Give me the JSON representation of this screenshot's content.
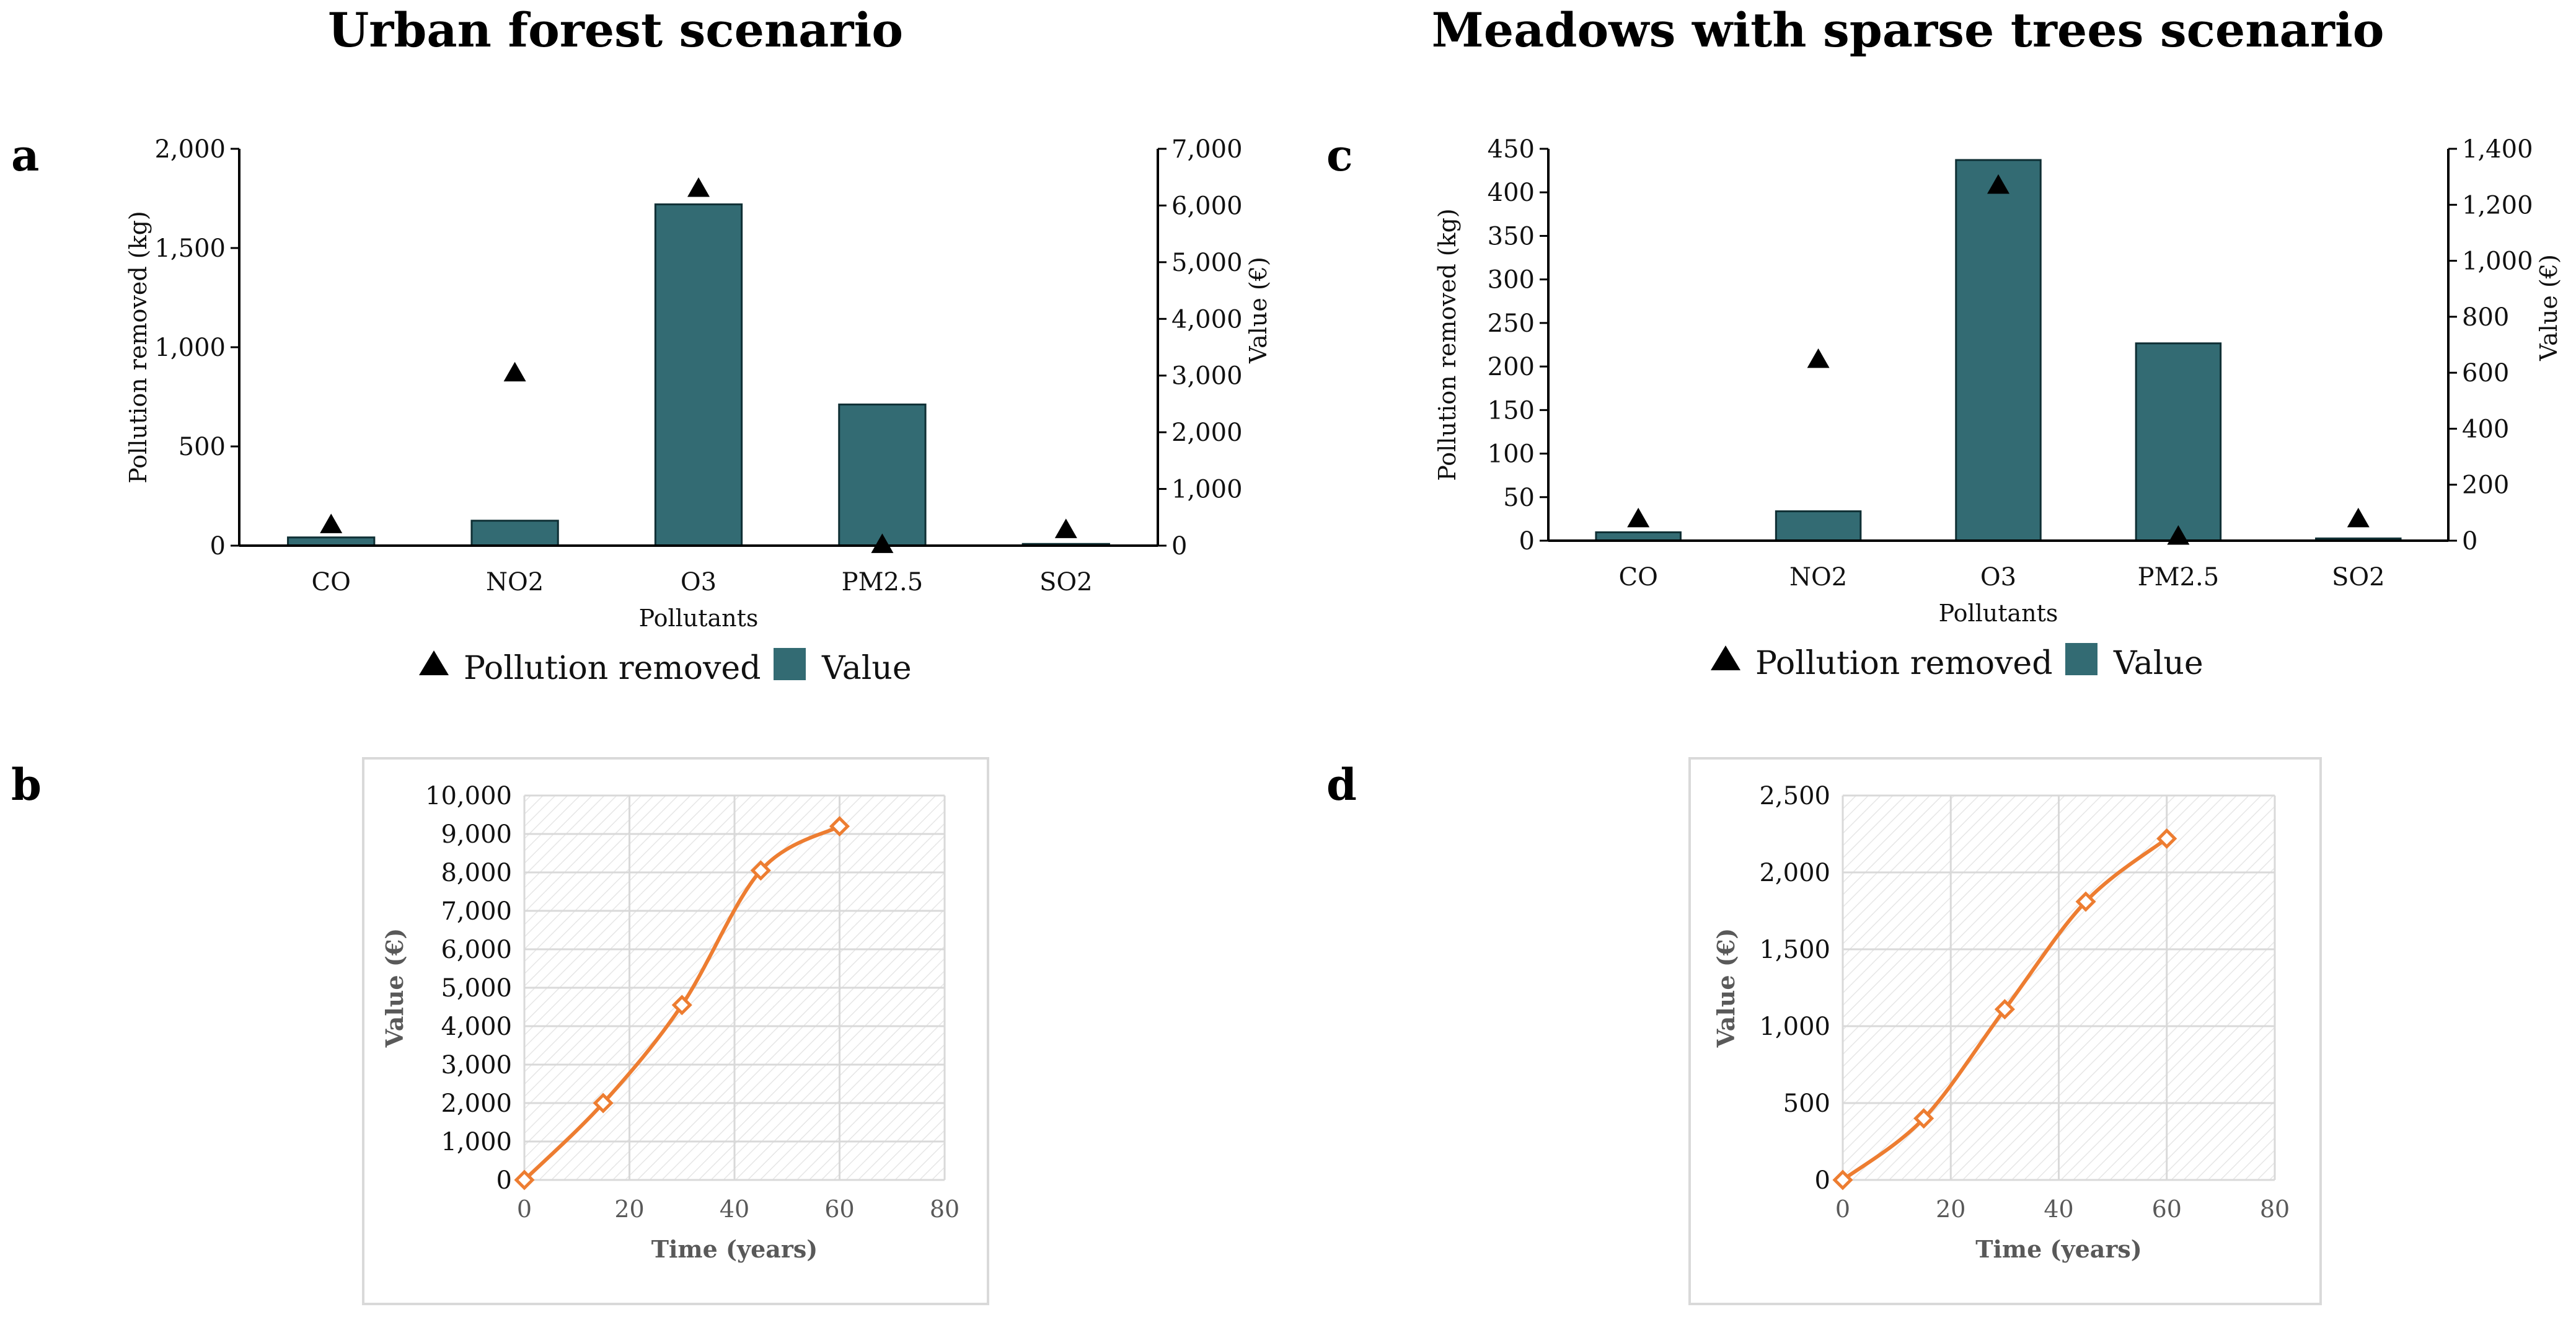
{
  "colors": {
    "bar": "#336b73",
    "bar_stroke": "#0f2f34",
    "marker": "#000000",
    "line": "#ED7D31",
    "grid": "#d9d9d9",
    "frame": "#d9d9d9"
  },
  "titles": {
    "left": "Urban forest scenario",
    "right": "Meadows with sparse trees scenario"
  },
  "chart_data": [
    {
      "id": "a",
      "panel_label": "a",
      "type": "bar",
      "title": "Urban forest scenario",
      "xlabel": "Pollutants",
      "ylabel": "Pollution removed (kg)",
      "y2label": "Value (€)",
      "categories": [
        "CO",
        "NO2",
        "O3",
        "PM2.5",
        "SO2"
      ],
      "ylim": [
        0,
        2000
      ],
      "yticks": [
        "0",
        "500",
        "1,000",
        "1,500",
        "2,000"
      ],
      "y2lim": [
        0,
        7000
      ],
      "y2ticks": [
        "0",
        "1,000",
        "2,000",
        "3,000",
        "4,000",
        "5,000",
        "6,000",
        "7,000"
      ],
      "series": [
        {
          "name": "Pollution removed",
          "kind": "triangle-marker",
          "axis": "left",
          "values": [
            105,
            870,
            1800,
            5,
            80
          ]
        },
        {
          "name": "Value",
          "kind": "bar",
          "axis": "right",
          "values": [
            145,
            440,
            6020,
            2490,
            30
          ]
        }
      ],
      "legend": [
        "Pollution removed",
        "Value"
      ]
    },
    {
      "id": "c",
      "panel_label": "c",
      "type": "bar",
      "title": "Meadows with sparse trees scenario",
      "xlabel": "Pollutants",
      "ylabel": "Pollution removed (kg)",
      "y2label": "Value (€)",
      "categories": [
        "CO",
        "NO2",
        "O3",
        "PM2.5",
        "SO2"
      ],
      "ylim": [
        0,
        450
      ],
      "yticks": [
        "0",
        "50",
        "100",
        "150",
        "200",
        "250",
        "300",
        "350",
        "400",
        "450"
      ],
      "y2lim": [
        0,
        1400
      ],
      "y2ticks": [
        "0",
        "200",
        "400",
        "600",
        "800",
        "1,000",
        "1,200",
        "1,400"
      ],
      "series": [
        {
          "name": "Pollution removed",
          "kind": "triangle-marker",
          "axis": "left",
          "values": [
            25,
            208,
            408,
            5,
            25
          ]
        },
        {
          "name": "Value",
          "kind": "bar",
          "axis": "right",
          "values": [
            30,
            105,
            1360,
            705,
            8
          ]
        }
      ],
      "legend": [
        "Pollution removed",
        "Value"
      ]
    },
    {
      "id": "b",
      "panel_label": "b",
      "type": "line",
      "xlabel": "Time (years)",
      "ylabel": "Value (€)",
      "xlim": [
        0,
        80
      ],
      "xticks": [
        "0",
        "20",
        "40",
        "60",
        "80"
      ],
      "ylim": [
        0,
        10000
      ],
      "yticks": [
        "0",
        "1,000",
        "2,000",
        "3,000",
        "4,000",
        "5,000",
        "6,000",
        "7,000",
        "8,000",
        "9,000",
        "10,000"
      ],
      "series": [
        {
          "name": "Value",
          "x": [
            0,
            15,
            30,
            45,
            60
          ],
          "y": [
            0,
            2000,
            4550,
            8050,
            9200
          ]
        }
      ]
    },
    {
      "id": "d",
      "panel_label": "d",
      "type": "line",
      "xlabel": "Time (years)",
      "ylabel": "Value (€)",
      "xlim": [
        0,
        80
      ],
      "xticks": [
        "0",
        "20",
        "40",
        "60",
        "80"
      ],
      "ylim": [
        0,
        2500
      ],
      "yticks": [
        "0",
        "500",
        "1,000",
        "1,500",
        "2,000",
        "2,500"
      ],
      "series": [
        {
          "name": "Value",
          "x": [
            0,
            15,
            30,
            45,
            60
          ],
          "y": [
            0,
            400,
            1110,
            1810,
            2220
          ]
        }
      ]
    }
  ]
}
